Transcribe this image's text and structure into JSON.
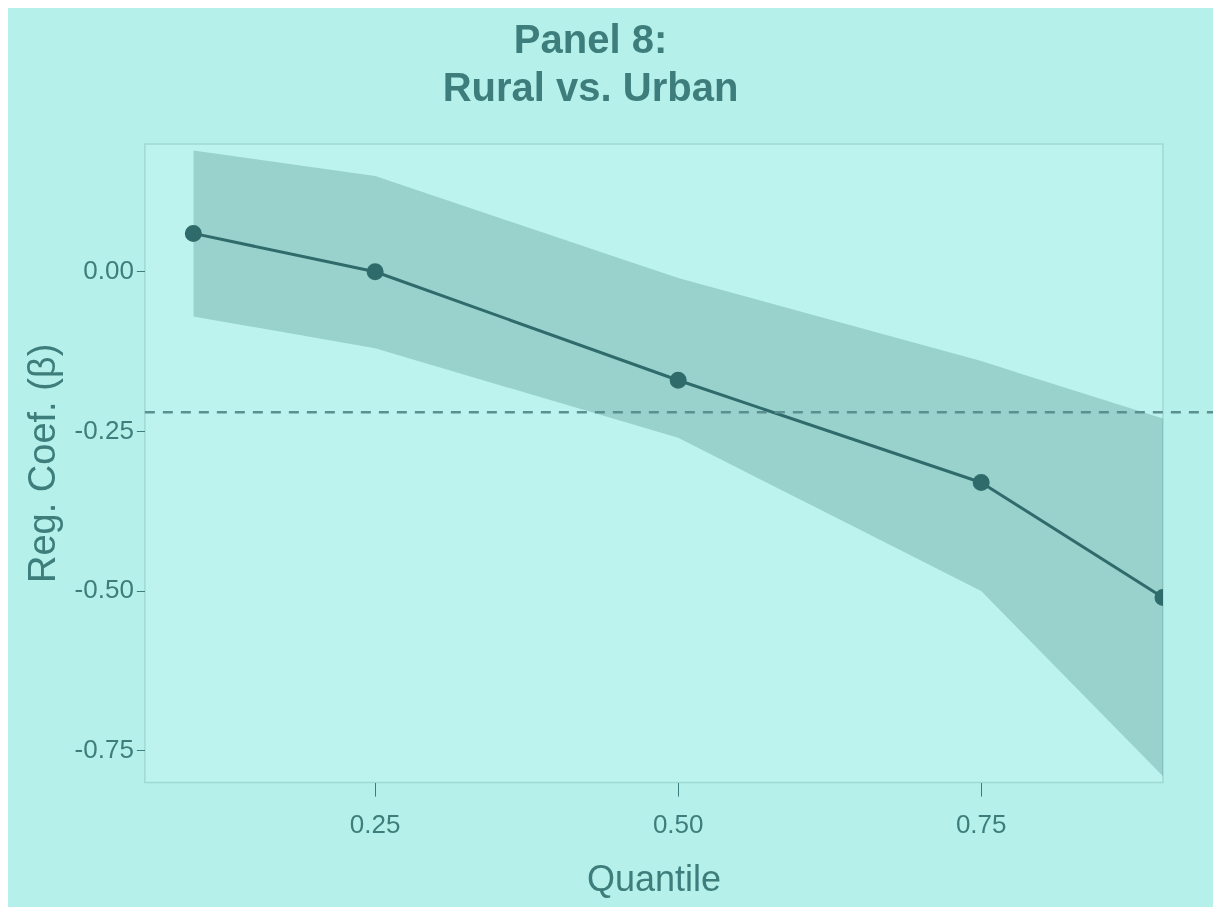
{
  "chart_data": {
    "type": "line",
    "title": "Panel 8:\nRural vs. Urban",
    "xlabel": "Quantile",
    "ylabel": "Reg. Coef. (β)",
    "x": [
      0.1,
      0.25,
      0.5,
      0.75,
      0.9
    ],
    "series": [
      {
        "color": "#2f6b6b",
        "values": [
          0.06,
          0.0,
          -0.17,
          -0.33,
          -0.51
        ],
        "lower": [
          -0.07,
          -0.12,
          -0.26,
          -0.5,
          -0.79
        ],
        "upper": [
          0.19,
          0.15,
          -0.01,
          -0.14,
          -0.23
        ]
      }
    ],
    "xlim": [
      0.06,
      0.9
    ],
    "xticks": [
      0.25,
      {
        "value": 0.5,
        "label": "0.50"
      },
      0.75
    ],
    "ylim": [
      -0.8,
      0.2
    ],
    "yticks": [
      {
        "value": 0,
        "label": "0.00"
      },
      -0.25,
      {
        "value": -0.5,
        "label": "-0.50"
      },
      -0.75
    ],
    "ref_lines": [
      {
        "axis": "y",
        "value": -0.22,
        "color": "#5c8f8f",
        "line_style": "dashed"
      }
    ],
    "grid": false,
    "legend": false,
    "marker": "circle",
    "line_style": "solid"
  }
}
